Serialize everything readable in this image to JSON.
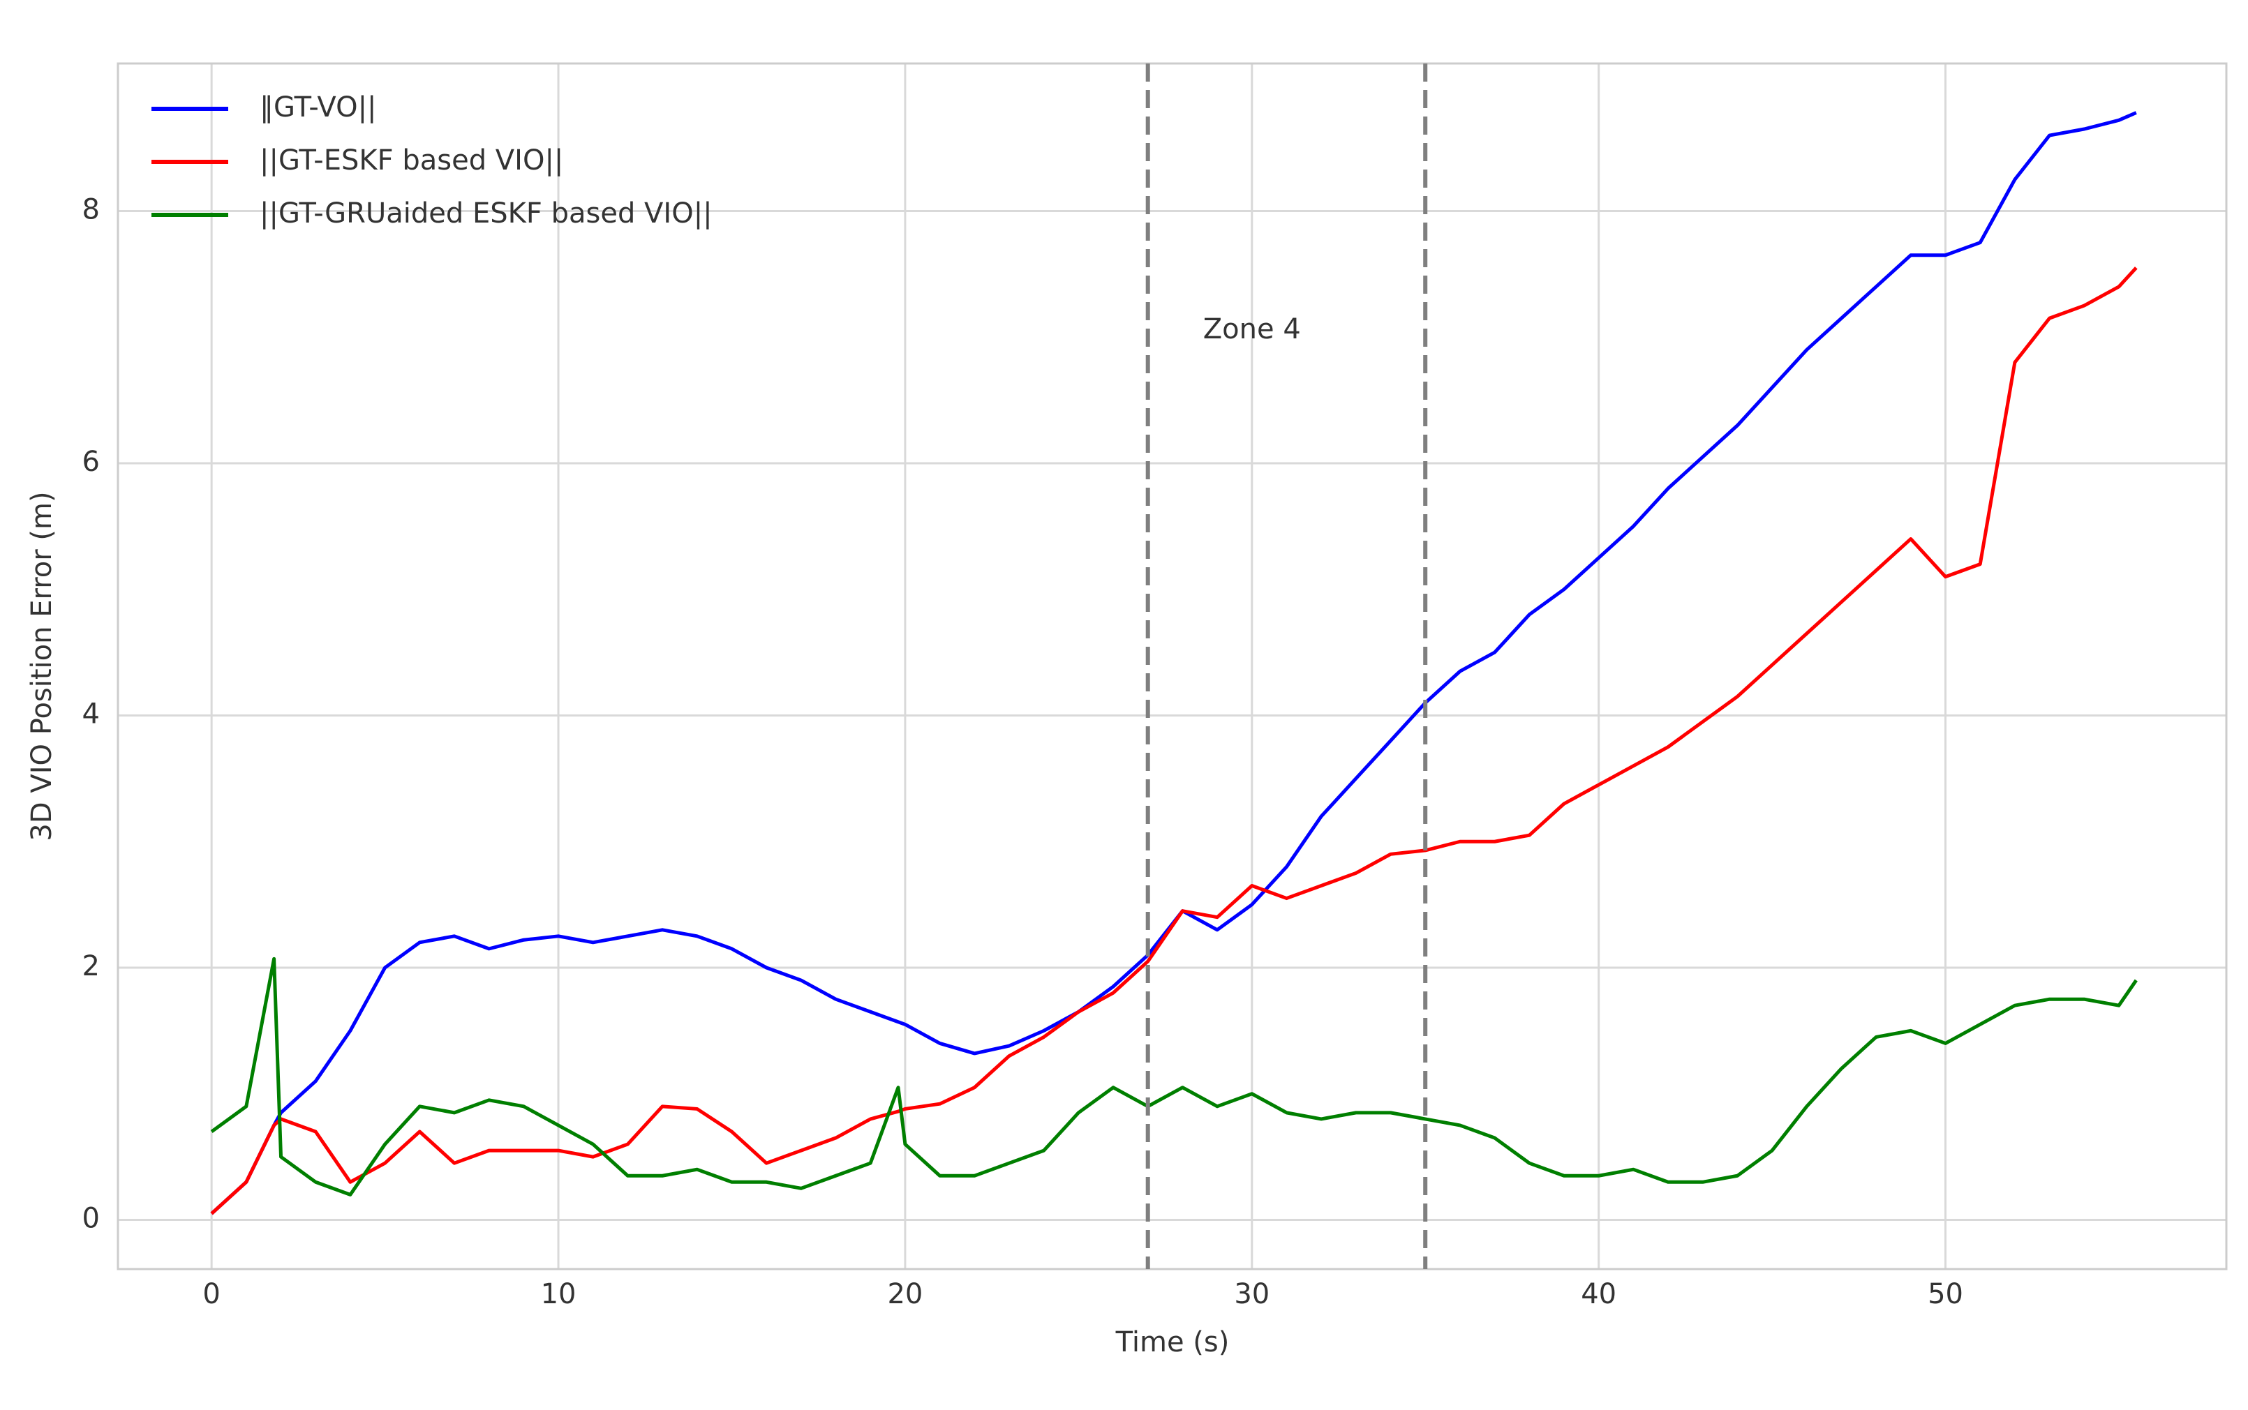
{
  "chart_data": {
    "type": "line",
    "xlabel": "Time (s)",
    "ylabel": "3D VIO Position Error (m)",
    "x": [
      0,
      1,
      1.8,
      2,
      3,
      4,
      5,
      6,
      7,
      8,
      9,
      10,
      11,
      12,
      13,
      14,
      15,
      16,
      17,
      18,
      19,
      19.8,
      20,
      21,
      22,
      23,
      24,
      25,
      26,
      27,
      28,
      29,
      30,
      31,
      32,
      33,
      34,
      35,
      36,
      37,
      38,
      39,
      40,
      41,
      42,
      43,
      44,
      45,
      46,
      47,
      48,
      49,
      50,
      51,
      52,
      53,
      54,
      55,
      55.5
    ],
    "series": [
      {
        "name": "‖GT-VO||",
        "color": "#0000ff",
        "values": [
          0.05,
          0.3,
          0.75,
          0.85,
          1.1,
          1.5,
          2.0,
          2.2,
          2.25,
          2.15,
          2.22,
          2.25,
          2.2,
          2.25,
          2.3,
          2.25,
          2.15,
          2.0,
          1.9,
          1.75,
          1.65,
          1.57,
          1.55,
          1.4,
          1.32,
          1.38,
          1.5,
          1.65,
          1.85,
          2.1,
          2.45,
          2.3,
          2.5,
          2.8,
          3.2,
          3.5,
          3.8,
          4.1,
          4.35,
          4.5,
          4.8,
          5.0,
          5.25,
          5.5,
          5.8,
          6.05,
          6.3,
          6.6,
          6.9,
          7.15,
          7.4,
          7.65,
          7.65,
          7.75,
          8.25,
          8.6,
          8.65,
          8.72,
          8.78
        ]
      },
      {
        "name": "||GT-ESKF based VIO||",
        "color": "#ff0000",
        "values": [
          0.05,
          0.3,
          0.75,
          0.8,
          0.7,
          0.3,
          0.45,
          0.7,
          0.45,
          0.55,
          0.55,
          0.55,
          0.5,
          0.6,
          0.9,
          0.88,
          0.7,
          0.45,
          0.55,
          0.65,
          0.8,
          0.86,
          0.88,
          0.92,
          1.05,
          1.3,
          1.45,
          1.65,
          1.8,
          2.05,
          2.45,
          2.4,
          2.65,
          2.55,
          2.65,
          2.75,
          2.9,
          2.93,
          3.0,
          3.0,
          3.05,
          3.3,
          3.45,
          3.6,
          3.75,
          3.95,
          4.15,
          4.4,
          4.65,
          4.9,
          5.15,
          5.4,
          5.1,
          5.2,
          6.8,
          7.15,
          7.25,
          7.4,
          7.55
        ]
      },
      {
        "name": "||GT-GRUaided ESKF based VIO||",
        "color": "#007f00",
        "values": [
          0.7,
          0.9,
          2.07,
          0.5,
          0.3,
          0.2,
          0.6,
          0.9,
          0.85,
          0.95,
          0.9,
          0.75,
          0.6,
          0.35,
          0.35,
          0.4,
          0.3,
          0.3,
          0.25,
          0.35,
          0.45,
          1.05,
          0.6,
          0.35,
          0.35,
          0.45,
          0.55,
          0.85,
          1.05,
          0.9,
          1.05,
          0.9,
          1.0,
          0.85,
          0.8,
          0.85,
          0.85,
          0.8,
          0.75,
          0.65,
          0.45,
          0.35,
          0.35,
          0.4,
          0.3,
          0.3,
          0.35,
          0.55,
          0.9,
          1.2,
          1.45,
          1.5,
          1.4,
          1.55,
          1.7,
          1.75,
          1.75,
          1.7,
          1.9
        ]
      }
    ],
    "xlim": [
      -2.7,
      58.1
    ],
    "ylim": [
      -0.39,
      9.17
    ],
    "xticks": [
      0,
      10,
      20,
      30,
      40,
      50
    ],
    "yticks": [
      0,
      2,
      4,
      6,
      8
    ],
    "vlines": [
      27,
      35
    ],
    "annotation": {
      "text": "Zone 4",
      "x": 30,
      "y": 7.05
    },
    "grid": true,
    "legend": "upper left"
  }
}
